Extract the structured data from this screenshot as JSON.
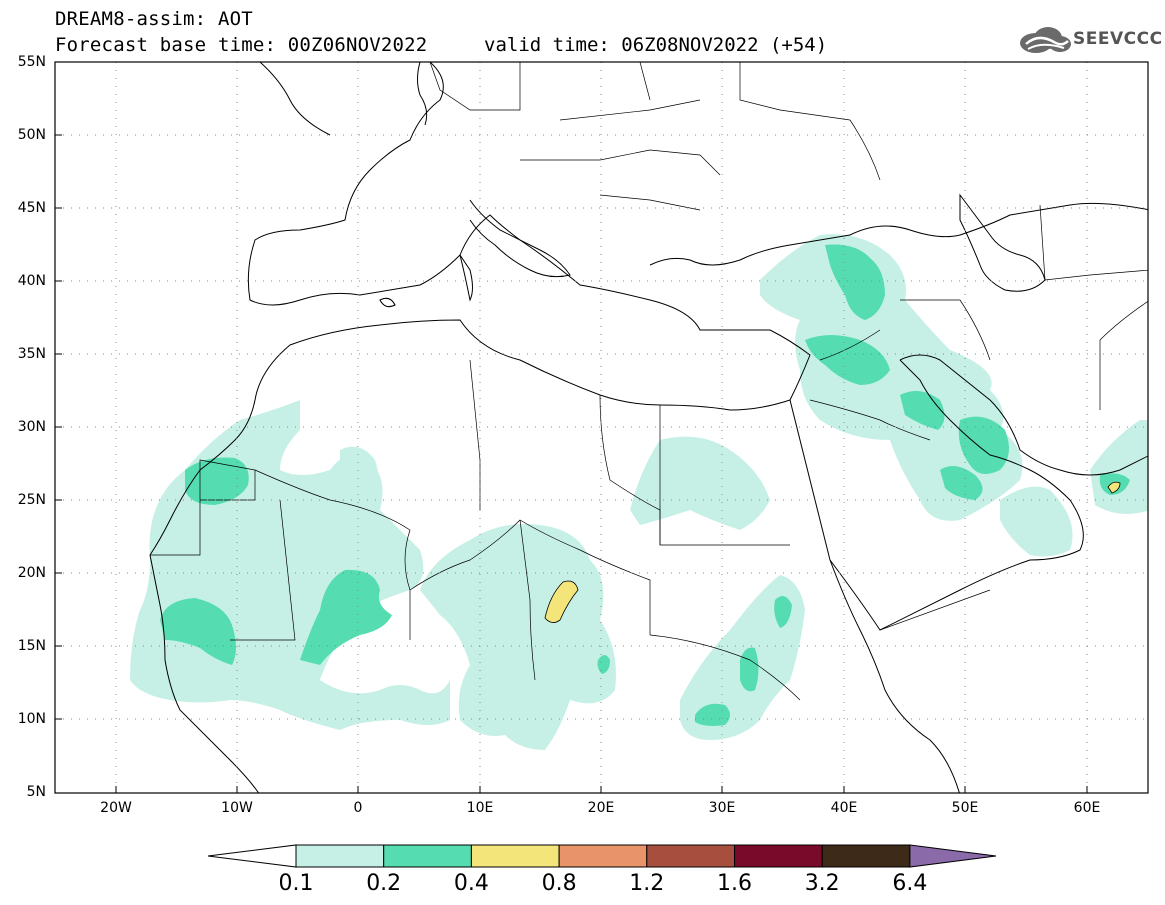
{
  "title_line1": "DREAM8-assim: AOT",
  "title_line2": "Forecast base time: 00Z06NOV2022",
  "valid_time": "valid time: 06Z08NOV2022 (+54)",
  "logo_text": "SEEVCCC",
  "map": {
    "lat_labels": [
      "55N",
      "50N",
      "45N",
      "40N",
      "35N",
      "30N",
      "25N",
      "20N",
      "15N",
      "10N",
      "5N"
    ],
    "lon_labels": [
      "20W",
      "10W",
      "0",
      "10E",
      "20E",
      "30E",
      "40E",
      "50E",
      "60E"
    ],
    "lat_range": [
      5,
      55
    ],
    "lon_range": [
      -25,
      65
    ],
    "gridlines": "dotted"
  },
  "colorbar": {
    "levels": [
      "0.1",
      "0.2",
      "0.4",
      "0.8",
      "1.2",
      "1.6",
      "3.2",
      "6.4"
    ],
    "colors": [
      "#ffffff",
      "#c6f0e6",
      "#55dcb0",
      "#f3e57a",
      "#e8936a",
      "#a84e3e",
      "#7a0a2a",
      "#3e2a18",
      "#8a6aa8"
    ]
  },
  "colors": {
    "low": "#c6f0e6",
    "mid": "#55dcb0",
    "high": "#f3e57a"
  }
}
